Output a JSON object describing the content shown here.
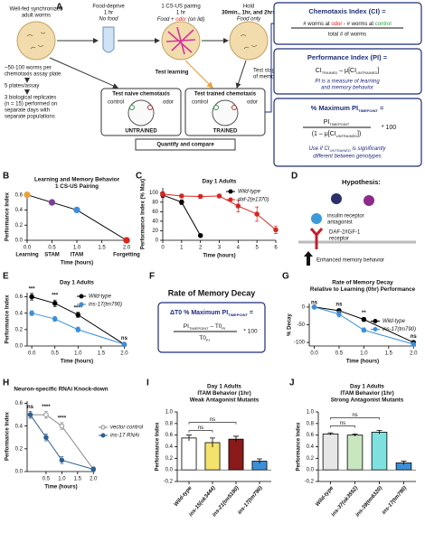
{
  "panel_A": {
    "label": "A",
    "step1": [
      "Well-fed synchronized",
      "adult worms"
    ],
    "step2": [
      "Food-deprive",
      "1 hr",
      "No food"
    ],
    "step3": [
      "1 CS-US pairing",
      "1 hr",
      "Food + ",
      "odor",
      " (on lid)"
    ],
    "step4": [
      "Hold",
      "30min., 1hr, and 2hrs",
      "Food only"
    ],
    "test_learning": "Test learning",
    "test_memory": [
      "Test stages",
      "of memory"
    ],
    "naive": "Test naive chemotaxis",
    "trained": "Test trained chemotaxis",
    "control": "control",
    "odor": "odor",
    "untrained_label": "UNTRAINED",
    "trained_label": "TRAINED",
    "quantify": "Quantify and compare",
    "notes": [
      "~50-100 worms per",
      "chemotaxis assay plate",
      "5 plates/assay",
      "3 biological replicates",
      "(n = 15) performed on",
      "separate days with",
      "separate populations"
    ],
    "ci_box": {
      "title": "Chemotaxis Index (CI) =",
      "num": [
        "# worms at ",
        "odor",
        " - # worms at ",
        "control"
      ],
      "den": "total # of worms"
    },
    "pi_box": {
      "title": "Performance Index (PI) =",
      "formula": [
        "CI",
        "TRAINED",
        " – μ[CI",
        "UNTRAINED",
        "]"
      ],
      "note": [
        "PI is a measure of learning",
        "and memory behavior"
      ]
    },
    "max_box": {
      "title": [
        "% Maximum PI",
        "TIMEPOINT",
        " ="
      ],
      "num": [
        "PI",
        "TIMEPOINT"
      ],
      "den": [
        "(1 – μ[CI",
        "UNTRAINED",
        "])"
      ],
      "times": "* 100",
      "note": [
        "Use if CI",
        "UNTRAINED",
        " is significantly",
        "different between genotypes"
      ]
    }
  },
  "panel_D": {
    "label": "D",
    "title": "Hypothesis:",
    "antagonist": [
      "insulin receptor",
      "antagonist"
    ],
    "receptor": [
      "DAF-2/IGF-1",
      "receptor"
    ],
    "outcome": "Enhanced memory behavior"
  },
  "panel_F": {
    "label": "F",
    "title": "Rate of Memory Decay",
    "formula_title": [
      "ΔT0 % Maximum PI",
      "TIMEPOINT",
      " ="
    ],
    "num": [
      "PI",
      "TIMEPOINT",
      " – T0",
      "PI"
    ],
    "den": [
      "T0",
      "PI"
    ],
    "times": "* 100"
  },
  "chart_data": [
    {
      "type": "line",
      "label": "B",
      "title": [
        "Learning and Memory Behavior",
        "1 CS-US Pairing"
      ],
      "x": [
        0,
        0.5,
        1,
        2
      ],
      "series": [
        {
          "color": "#000000",
          "values": [
            0.6,
            0.5,
            0.4,
            0
          ]
        }
      ],
      "point_colors": [
        "#e8a33d",
        "#7b3f98",
        "#3b8fd9",
        "#d7261e"
      ],
      "point_labels": [
        "Learning",
        "STAM",
        "ITAM",
        "Forgetting"
      ],
      "xlim": [
        0,
        2
      ],
      "ylim": [
        0,
        0.62
      ],
      "xticks": [
        {
          "value": 0,
          "label": "0.0"
        },
        0.5,
        {
          "value": 1,
          "label": "1.0"
        },
        1.5,
        {
          "value": 2,
          "label": "2.0"
        }
      ],
      "yticks": [
        {
          "value": 0,
          "label": "0.0"
        },
        0.2,
        0.4,
        0.6
      ],
      "xlabel": "Time (hours)",
      "ylabel": "Performance Index"
    },
    {
      "type": "line",
      "label": "C",
      "title": [
        "Day 1 Adults"
      ],
      "x": [
        0,
        1,
        2,
        3,
        4,
        5,
        6
      ],
      "series": [
        {
          "name": "Wild-type",
          "color": "#000000",
          "values": [
            95,
            80,
            10,
            null,
            null,
            null,
            null
          ],
          "errors": [
            5,
            5,
            3,
            null,
            null,
            null,
            null
          ]
        },
        {
          "name": "daf-2(e1370)",
          "color": "#d7261e",
          "values": [
            97,
            93,
            92,
            93,
            72,
            55,
            22
          ],
          "errors": [
            5,
            4,
            4,
            4,
            12,
            15,
            8
          ]
        }
      ],
      "xlim": [
        0,
        6
      ],
      "ylim": [
        0,
        110
      ],
      "xticks": [
        0,
        1,
        2,
        3,
        4,
        5,
        6
      ],
      "yticks": [
        0,
        20,
        40,
        60,
        80,
        100
      ],
      "xlabel": "Time (hours)",
      "ylabel": "Performance Index (% Max)",
      "legend": "upper right"
    },
    {
      "type": "line",
      "label": "E",
      "title": [
        "Day 1 Adults"
      ],
      "x": [
        0,
        0.5,
        1,
        2
      ],
      "series": [
        {
          "name": "Wild-type",
          "color": "#000000",
          "values": [
            0.6,
            0.52,
            0.38,
            0.02
          ],
          "errors": [
            0.04,
            0.04,
            0.03,
            0.02
          ]
        },
        {
          "name": "ins-17(tm790)",
          "color": "#3b8fd9",
          "values": [
            0.4,
            0.33,
            0.2,
            0.02
          ],
          "errors": [
            0.03,
            0.03,
            0.03,
            0.02
          ]
        }
      ],
      "annotations": [
        {
          "text": "***",
          "x": 0
        },
        {
          "text": "***",
          "x": 0.5
        },
        {
          "text": "****",
          "x": 1
        },
        {
          "text": "ns",
          "x": 2
        }
      ],
      "xlim": [
        -0.1,
        2.05
      ],
      "ylim": [
        0,
        0.65
      ],
      "xticks": [
        {
          "value": 0,
          "label": "0.0"
        },
        0.5,
        {
          "value": 1,
          "label": "1.0"
        },
        1.5,
        {
          "value": 2,
          "label": "2.0"
        }
      ],
      "yticks": [
        {
          "value": 0,
          "label": "0.0"
        },
        0.2,
        0.4,
        0.6
      ],
      "xlabel": "Time (hours)",
      "ylabel": "Performance Index",
      "legend": "upper right"
    },
    {
      "type": "line",
      "label": "G",
      "title": [
        "Rate of Memory Decay",
        "Relative to Learning (0hr) Performance"
      ],
      "x": [
        0,
        0.5,
        1,
        2
      ],
      "series": [
        {
          "name": "Wild-type",
          "color": "#000000",
          "values": [
            0,
            -10,
            -35,
            -100
          ],
          "errors": [
            null,
            5,
            5,
            4
          ]
        },
        {
          "name": "ins-17(tm790)",
          "color": "#3b8fd9",
          "values": [
            0,
            -20,
            -65,
            -105
          ],
          "errors": [
            null,
            8,
            6,
            5
          ]
        }
      ],
      "annotations": [
        {
          "text": "ns",
          "x": 0
        },
        {
          "text": "ns",
          "x": 0.5
        },
        {
          "text": "**",
          "x": 1
        },
        {
          "text": "ns",
          "x": 2
        }
      ],
      "xlim": [
        -0.1,
        2.05
      ],
      "ylim": [
        -110,
        10
      ],
      "xticks": [
        {
          "value": 0,
          "label": "0.0"
        },
        0.5,
        {
          "value": 1,
          "label": "1.0"
        },
        1.5,
        {
          "value": 2,
          "label": "2.0"
        }
      ],
      "yticks": [
        0,
        -50,
        -100
      ],
      "xlabel": "Time (hours)",
      "ylabel": "% Decay",
      "legend": "center right"
    },
    {
      "type": "line",
      "label": "H",
      "title": [
        "Neuron-specific RNAi Knock-down"
      ],
      "x": [
        0,
        0.5,
        1,
        2
      ],
      "series": [
        {
          "name": "vector control",
          "color": "#888888",
          "marker": "open",
          "values": [
            0.5,
            0.5,
            0.4,
            0.02
          ],
          "errors": [
            0.03,
            0.03,
            0.03,
            0.02
          ]
        },
        {
          "name": "ins-17 RNAi",
          "color": "#2f5f8f",
          "values": [
            0.5,
            0.3,
            0.1,
            0.02
          ],
          "errors": [
            0.03,
            0.03,
            0.03,
            0.02
          ]
        }
      ],
      "annotations": [
        {
          "text": "ns",
          "x": 0
        },
        {
          "text": "****",
          "x": 0.5
        },
        {
          "text": "****",
          "x": 1
        }
      ],
      "xlim": [
        -0.1,
        2.05
      ],
      "ylim": [
        0,
        0.62
      ],
      "xticks": [
        0.5,
        {
          "value": 1,
          "label": "1.0"
        },
        1.5,
        {
          "value": 2,
          "label": "2.0"
        }
      ],
      "yticks": [
        {
          "value": 0,
          "label": "0.0"
        },
        0.2,
        0.4,
        0.6
      ],
      "xlabel": "Time (hours)",
      "ylabel": "Performance Index",
      "legend": "right"
    },
    {
      "type": "bar",
      "label": "I",
      "title": [
        "Day 1 Adults",
        "ITAM Behavior (1hr)"
      ],
      "subtitle": "Weak Antagonist Mutants",
      "subtitle_color": "#7b3f98",
      "categories": [
        "Wild-type",
        "ins-15(ok3444)",
        "ins-21(tm5180)",
        "ins-17(tm790)"
      ],
      "values": [
        0.55,
        0.47,
        0.53,
        0.15
      ],
      "errors": [
        0.05,
        0.08,
        0.05,
        0.04
      ],
      "colors": [
        "#ffffff",
        "#f3e26b",
        "#8b1a1a",
        "#3b8fd9"
      ],
      "annotations": [
        {
          "text": "ns",
          "from": 0,
          "to": 1
        },
        {
          "text": "ns",
          "from": 0,
          "to": 2
        }
      ],
      "ylim": [
        -0.2,
        1.0
      ],
      "yticks": [
        -0.2,
        {
          "value": 0,
          "label": "0.0"
        },
        0.2,
        0.4,
        0.6,
        0.8,
        {
          "value": 1,
          "label": "1.0"
        }
      ],
      "ylabel": "Performance Index"
    },
    {
      "type": "bar",
      "label": "J",
      "title": [
        "Day 1 Adults",
        "ITAM Behavior (1hr)"
      ],
      "subtitle": "Strong Antagonist Mutants",
      "subtitle_color": "#2b6cb0",
      "categories": [
        "Wild-type",
        "ins-37(ok3552)",
        "ins-39(tm6320)",
        "ins-17(tm790)"
      ],
      "values": [
        0.62,
        0.6,
        0.65,
        0.12
      ],
      "errors": [
        0.02,
        0.02,
        0.03,
        0.03
      ],
      "colors": [
        "#e6e6e6",
        "#c8e6c0",
        "#7fe0e0",
        "#3b8fd9"
      ],
      "annotations": [
        {
          "text": "ns",
          "from": 0,
          "to": 1
        },
        {
          "text": "ns",
          "from": 0,
          "to": 2
        }
      ],
      "ylim": [
        -0.2,
        1.0
      ],
      "yticks": [
        -0.2,
        {
          "value": 0,
          "label": "0.0"
        },
        0.2,
        0.4,
        0.6,
        0.8,
        {
          "value": 1,
          "label": "1.0"
        }
      ],
      "ylabel": "Performance Index"
    }
  ]
}
